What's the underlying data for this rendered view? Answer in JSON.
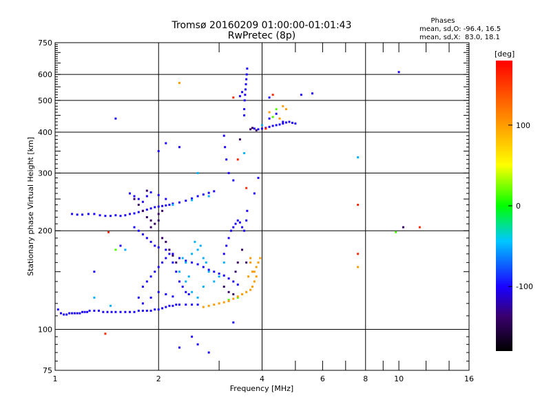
{
  "chart_data": {
    "type": "scatter",
    "title": "Tromsø 20160209 01:00:00-01:01:43",
    "subtitle": "RwPretec (8p)",
    "info": {
      "heading": "Phases",
      "line1": "mean, sd,O: -96.4, 16.5",
      "line2": "mean, sd,X:  83.0, 18.1"
    },
    "xlabel": "Frequency [MHz]",
    "ylabel": "Stationary phase Virtual Height [km]",
    "x_scale": "log",
    "y_scale": "log",
    "xlim": [
      1,
      16
    ],
    "ylim": [
      75,
      750
    ],
    "x_tick_labels": [
      {
        "v": 1,
        "label": "1"
      },
      {
        "v": 2,
        "label": "2"
      },
      {
        "v": 4,
        "label": "4"
      },
      {
        "v": 6,
        "label": "6"
      },
      {
        "v": 8,
        "label": "8"
      },
      {
        "v": 10,
        "label": "10"
      },
      {
        "v": 16,
        "label": "16"
      }
    ],
    "x_major_grid": [
      2,
      4,
      8
    ],
    "x_minor_ticks": [
      3,
      5,
      6,
      7,
      9,
      10,
      12,
      14
    ],
    "y_tick_labels": [
      {
        "v": 75,
        "label": "75"
      },
      {
        "v": 100,
        "label": "100"
      },
      {
        "v": 200,
        "label": "200"
      },
      {
        "v": 300,
        "label": "300"
      },
      {
        "v": 400,
        "label": "400"
      },
      {
        "v": 500,
        "label": "500"
      },
      {
        "v": 600,
        "label": "600"
      },
      {
        "v": 750,
        "label": "750"
      }
    ],
    "y_major_grid": [
      100,
      200,
      300,
      400,
      500,
      600
    ],
    "colorbar": {
      "label": "deg",
      "range": [
        -180,
        180
      ],
      "tick_labels": [
        {
          "v": 100,
          "label": "100"
        },
        {
          "v": 0,
          "label": "0"
        },
        {
          "v": -100,
          "label": "-100"
        }
      ]
    },
    "grid": true,
    "series": [
      {
        "phase_deg": -100,
        "points": [
          [
            1.02,
            115
          ],
          [
            1.04,
            112
          ],
          [
            1.06,
            111
          ],
          [
            1.08,
            111
          ],
          [
            1.1,
            112
          ],
          [
            1.12,
            112
          ],
          [
            1.14,
            112
          ],
          [
            1.16,
            112
          ],
          [
            1.18,
            112
          ],
          [
            1.2,
            113
          ],
          [
            1.22,
            113
          ],
          [
            1.24,
            113
          ],
          [
            1.26,
            114
          ],
          [
            1.3,
            114
          ],
          [
            1.34,
            114
          ],
          [
            1.38,
            113
          ],
          [
            1.42,
            113
          ],
          [
            1.46,
            113
          ],
          [
            1.5,
            113
          ],
          [
            1.55,
            113
          ],
          [
            1.6,
            113
          ],
          [
            1.65,
            113
          ],
          [
            1.7,
            113
          ],
          [
            1.75,
            114
          ],
          [
            1.8,
            114
          ],
          [
            1.85,
            114
          ],
          [
            1.9,
            114
          ],
          [
            1.95,
            115
          ],
          [
            2.0,
            115
          ],
          [
            2.05,
            116
          ],
          [
            2.1,
            117
          ],
          [
            2.15,
            118
          ],
          [
            2.2,
            118
          ],
          [
            2.25,
            119
          ],
          [
            2.3,
            119
          ],
          [
            2.4,
            119
          ],
          [
            2.5,
            119
          ],
          [
            2.6,
            119
          ],
          [
            1.12,
            225
          ],
          [
            1.16,
            224
          ],
          [
            1.2,
            224
          ],
          [
            1.25,
            225
          ],
          [
            1.3,
            225
          ],
          [
            1.35,
            223
          ],
          [
            1.4,
            222
          ],
          [
            1.45,
            222
          ],
          [
            1.5,
            223
          ],
          [
            1.55,
            222
          ],
          [
            1.6,
            223
          ],
          [
            1.65,
            225
          ],
          [
            1.7,
            226
          ],
          [
            1.75,
            228
          ],
          [
            1.8,
            230
          ],
          [
            1.85,
            232
          ],
          [
            1.9,
            234
          ],
          [
            1.95,
            236
          ],
          [
            2.0,
            237
          ],
          [
            2.05,
            238
          ],
          [
            2.1,
            239
          ],
          [
            2.15,
            240
          ],
          [
            2.2,
            242
          ],
          [
            2.3,
            244
          ],
          [
            2.4,
            247
          ],
          [
            2.5,
            251
          ],
          [
            2.6,
            255
          ],
          [
            2.7,
            258
          ],
          [
            2.8,
            261
          ],
          [
            2.9,
            264
          ],
          [
            1.65,
            260
          ],
          [
            1.7,
            255
          ],
          [
            1.75,
            250
          ],
          [
            1.8,
            245
          ],
          [
            1.85,
            255
          ],
          [
            1.9,
            262
          ],
          [
            2.0,
            257
          ],
          [
            2.1,
            250
          ],
          [
            1.7,
            205
          ],
          [
            1.75,
            200
          ],
          [
            1.8,
            195
          ],
          [
            1.85,
            190
          ],
          [
            1.9,
            185
          ],
          [
            1.95,
            180
          ],
          [
            2.0,
            178
          ],
          [
            2.1,
            175
          ],
          [
            2.2,
            170
          ],
          [
            2.3,
            165
          ],
          [
            2.4,
            162
          ],
          [
            2.5,
            160
          ],
          [
            2.6,
            158
          ],
          [
            2.7,
            155
          ],
          [
            2.8,
            152
          ],
          [
            2.9,
            150
          ],
          [
            3.0,
            148
          ],
          [
            3.1,
            146
          ],
          [
            3.2,
            143
          ],
          [
            3.3,
            140
          ],
          [
            3.4,
            137
          ],
          [
            1.8,
            135
          ],
          [
            1.85,
            140
          ],
          [
            1.9,
            145
          ],
          [
            1.95,
            150
          ],
          [
            2.0,
            155
          ],
          [
            2.05,
            160
          ],
          [
            2.1,
            165
          ],
          [
            2.15,
            170
          ],
          [
            2.2,
            160
          ],
          [
            2.25,
            150
          ],
          [
            2.3,
            140
          ],
          [
            2.35,
            135
          ],
          [
            2.4,
            130
          ],
          [
            2.45,
            128
          ],
          [
            1.75,
            125
          ],
          [
            1.8,
            120
          ],
          [
            1.9,
            125
          ],
          [
            2.0,
            130
          ],
          [
            2.1,
            128
          ],
          [
            2.2,
            126
          ],
          [
            3.1,
            170
          ],
          [
            3.15,
            180
          ],
          [
            3.2,
            190
          ],
          [
            3.25,
            200
          ],
          [
            3.3,
            205
          ],
          [
            3.35,
            210
          ],
          [
            3.4,
            215
          ],
          [
            3.45,
            212
          ],
          [
            3.5,
            205
          ],
          [
            3.55,
            200
          ],
          [
            3.6,
            215
          ],
          [
            3.62,
            230
          ],
          [
            3.55,
            470
          ],
          [
            3.56,
            500
          ],
          [
            3.57,
            520
          ],
          [
            3.58,
            540
          ],
          [
            3.59,
            560
          ],
          [
            3.6,
            580
          ],
          [
            3.61,
            600
          ],
          [
            3.62,
            625
          ],
          [
            3.45,
            515
          ],
          [
            3.5,
            530
          ],
          [
            3.55,
            450
          ],
          [
            3.8,
            410
          ],
          [
            3.9,
            408
          ],
          [
            4.0,
            410
          ],
          [
            4.1,
            412
          ],
          [
            4.2,
            415
          ],
          [
            4.3,
            418
          ],
          [
            4.4,
            420
          ],
          [
            4.5,
            422
          ],
          [
            4.6,
            425
          ],
          [
            4.7,
            428
          ],
          [
            4.8,
            430
          ],
          [
            4.9,
            427
          ],
          [
            5.0,
            425
          ],
          [
            4.2,
            440
          ],
          [
            4.4,
            455
          ],
          [
            4.6,
            430
          ],
          [
            3.1,
            390
          ],
          [
            3.12,
            360
          ],
          [
            3.15,
            330
          ],
          [
            3.2,
            300
          ],
          [
            3.3,
            285
          ],
          [
            1.5,
            440
          ],
          [
            2.0,
            350
          ],
          [
            2.3,
            360
          ],
          [
            2.1,
            370
          ],
          [
            3.8,
            260
          ],
          [
            3.9,
            290
          ],
          [
            1.55,
            180
          ],
          [
            1.3,
            150
          ],
          [
            3.3,
            105
          ],
          [
            2.5,
            95
          ],
          [
            2.6,
            90
          ],
          [
            2.8,
            85
          ],
          [
            2.3,
            88
          ],
          [
            4.2,
            510
          ],
          [
            5.2,
            520
          ],
          [
            5.6,
            525
          ],
          [
            10.0,
            610
          ]
        ]
      },
      {
        "phase_deg": -140,
        "points": [
          [
            1.7,
            250
          ],
          [
            1.75,
            240
          ],
          [
            1.8,
            230
          ],
          [
            1.85,
            220
          ],
          [
            1.9,
            215
          ],
          [
            1.95,
            210
          ],
          [
            2.0,
            215
          ],
          [
            2.05,
            190
          ],
          [
            2.1,
            185
          ],
          [
            2.15,
            175
          ],
          [
            2.2,
            168
          ],
          [
            2.25,
            160
          ],
          [
            3.1,
            135
          ],
          [
            3.2,
            130
          ],
          [
            3.3,
            128
          ],
          [
            3.35,
            150
          ],
          [
            3.4,
            160
          ],
          [
            3.5,
            175
          ],
          [
            3.6,
            160
          ],
          [
            3.7,
            408
          ],
          [
            3.75,
            412
          ],
          [
            3.85,
            405
          ],
          [
            2.0,
            225
          ],
          [
            1.9,
            205
          ],
          [
            3.45,
            380
          ],
          [
            2.05,
            230
          ],
          [
            1.85,
            265
          ],
          [
            10.3,
            205
          ]
        ]
      },
      {
        "phase_deg": -50,
        "points": [
          [
            2.3,
            150
          ],
          [
            2.4,
            160
          ],
          [
            2.5,
            170
          ],
          [
            2.6,
            175
          ],
          [
            2.7,
            165
          ],
          [
            2.8,
            150
          ],
          [
            2.9,
            140
          ],
          [
            2.55,
            185
          ],
          [
            2.45,
            145
          ],
          [
            2.35,
            165
          ],
          [
            2.65,
            180
          ],
          [
            2.75,
            160
          ],
          [
            2.5,
            130
          ],
          [
            2.6,
            125
          ],
          [
            2.7,
            135
          ],
          [
            2.4,
            140
          ],
          [
            1.3,
            125
          ],
          [
            1.45,
            118
          ],
          [
            1.6,
            175
          ],
          [
            2.2,
            240
          ],
          [
            2.5,
            248
          ],
          [
            2.8,
            255
          ],
          [
            3.0,
            145
          ],
          [
            3.1,
            160
          ],
          [
            3.55,
            345
          ],
          [
            4.0,
            420
          ],
          [
            7.6,
            335
          ],
          [
            2.6,
            300
          ]
        ]
      },
      {
        "phase_deg": 15,
        "points": [
          [
            4.4,
            470
          ],
          [
            3.4,
            125
          ],
          [
            3.5,
            128
          ],
          [
            9.8,
            198
          ],
          [
            1.5,
            175
          ],
          [
            4.3,
            445
          ],
          [
            3.2,
            123
          ]
        ]
      },
      {
        "phase_deg": 100,
        "points": [
          [
            2.9,
            119
          ],
          [
            3.0,
            120
          ],
          [
            3.1,
            121
          ],
          [
            3.2,
            122
          ],
          [
            3.3,
            124
          ],
          [
            3.4,
            126
          ],
          [
            3.5,
            128
          ],
          [
            3.6,
            130
          ],
          [
            3.7,
            132
          ],
          [
            3.75,
            135
          ],
          [
            3.8,
            140
          ],
          [
            3.85,
            145
          ],
          [
            3.8,
            150
          ],
          [
            3.85,
            155
          ],
          [
            3.9,
            160
          ],
          [
            3.95,
            165
          ],
          [
            3.7,
            160
          ],
          [
            3.75,
            150
          ],
          [
            3.65,
            145
          ],
          [
            3.7,
            165
          ],
          [
            2.7,
            117
          ],
          [
            2.8,
            118
          ],
          [
            4.6,
            480
          ],
          [
            4.7,
            470
          ],
          [
            4.5,
            440
          ],
          [
            4.2,
            460
          ],
          [
            7.6,
            155
          ],
          [
            2.3,
            565
          ]
        ]
      },
      {
        "phase_deg": 160,
        "points": [
          [
            1.4,
            97
          ],
          [
            7.6,
            240
          ],
          [
            7.6,
            170
          ],
          [
            11.5,
            205
          ],
          [
            1.43,
            198
          ],
          [
            4.1,
            410
          ],
          [
            3.3,
            510
          ],
          [
            3.4,
            330
          ],
          [
            3.6,
            270
          ],
          [
            4.3,
            520
          ]
        ]
      }
    ]
  }
}
